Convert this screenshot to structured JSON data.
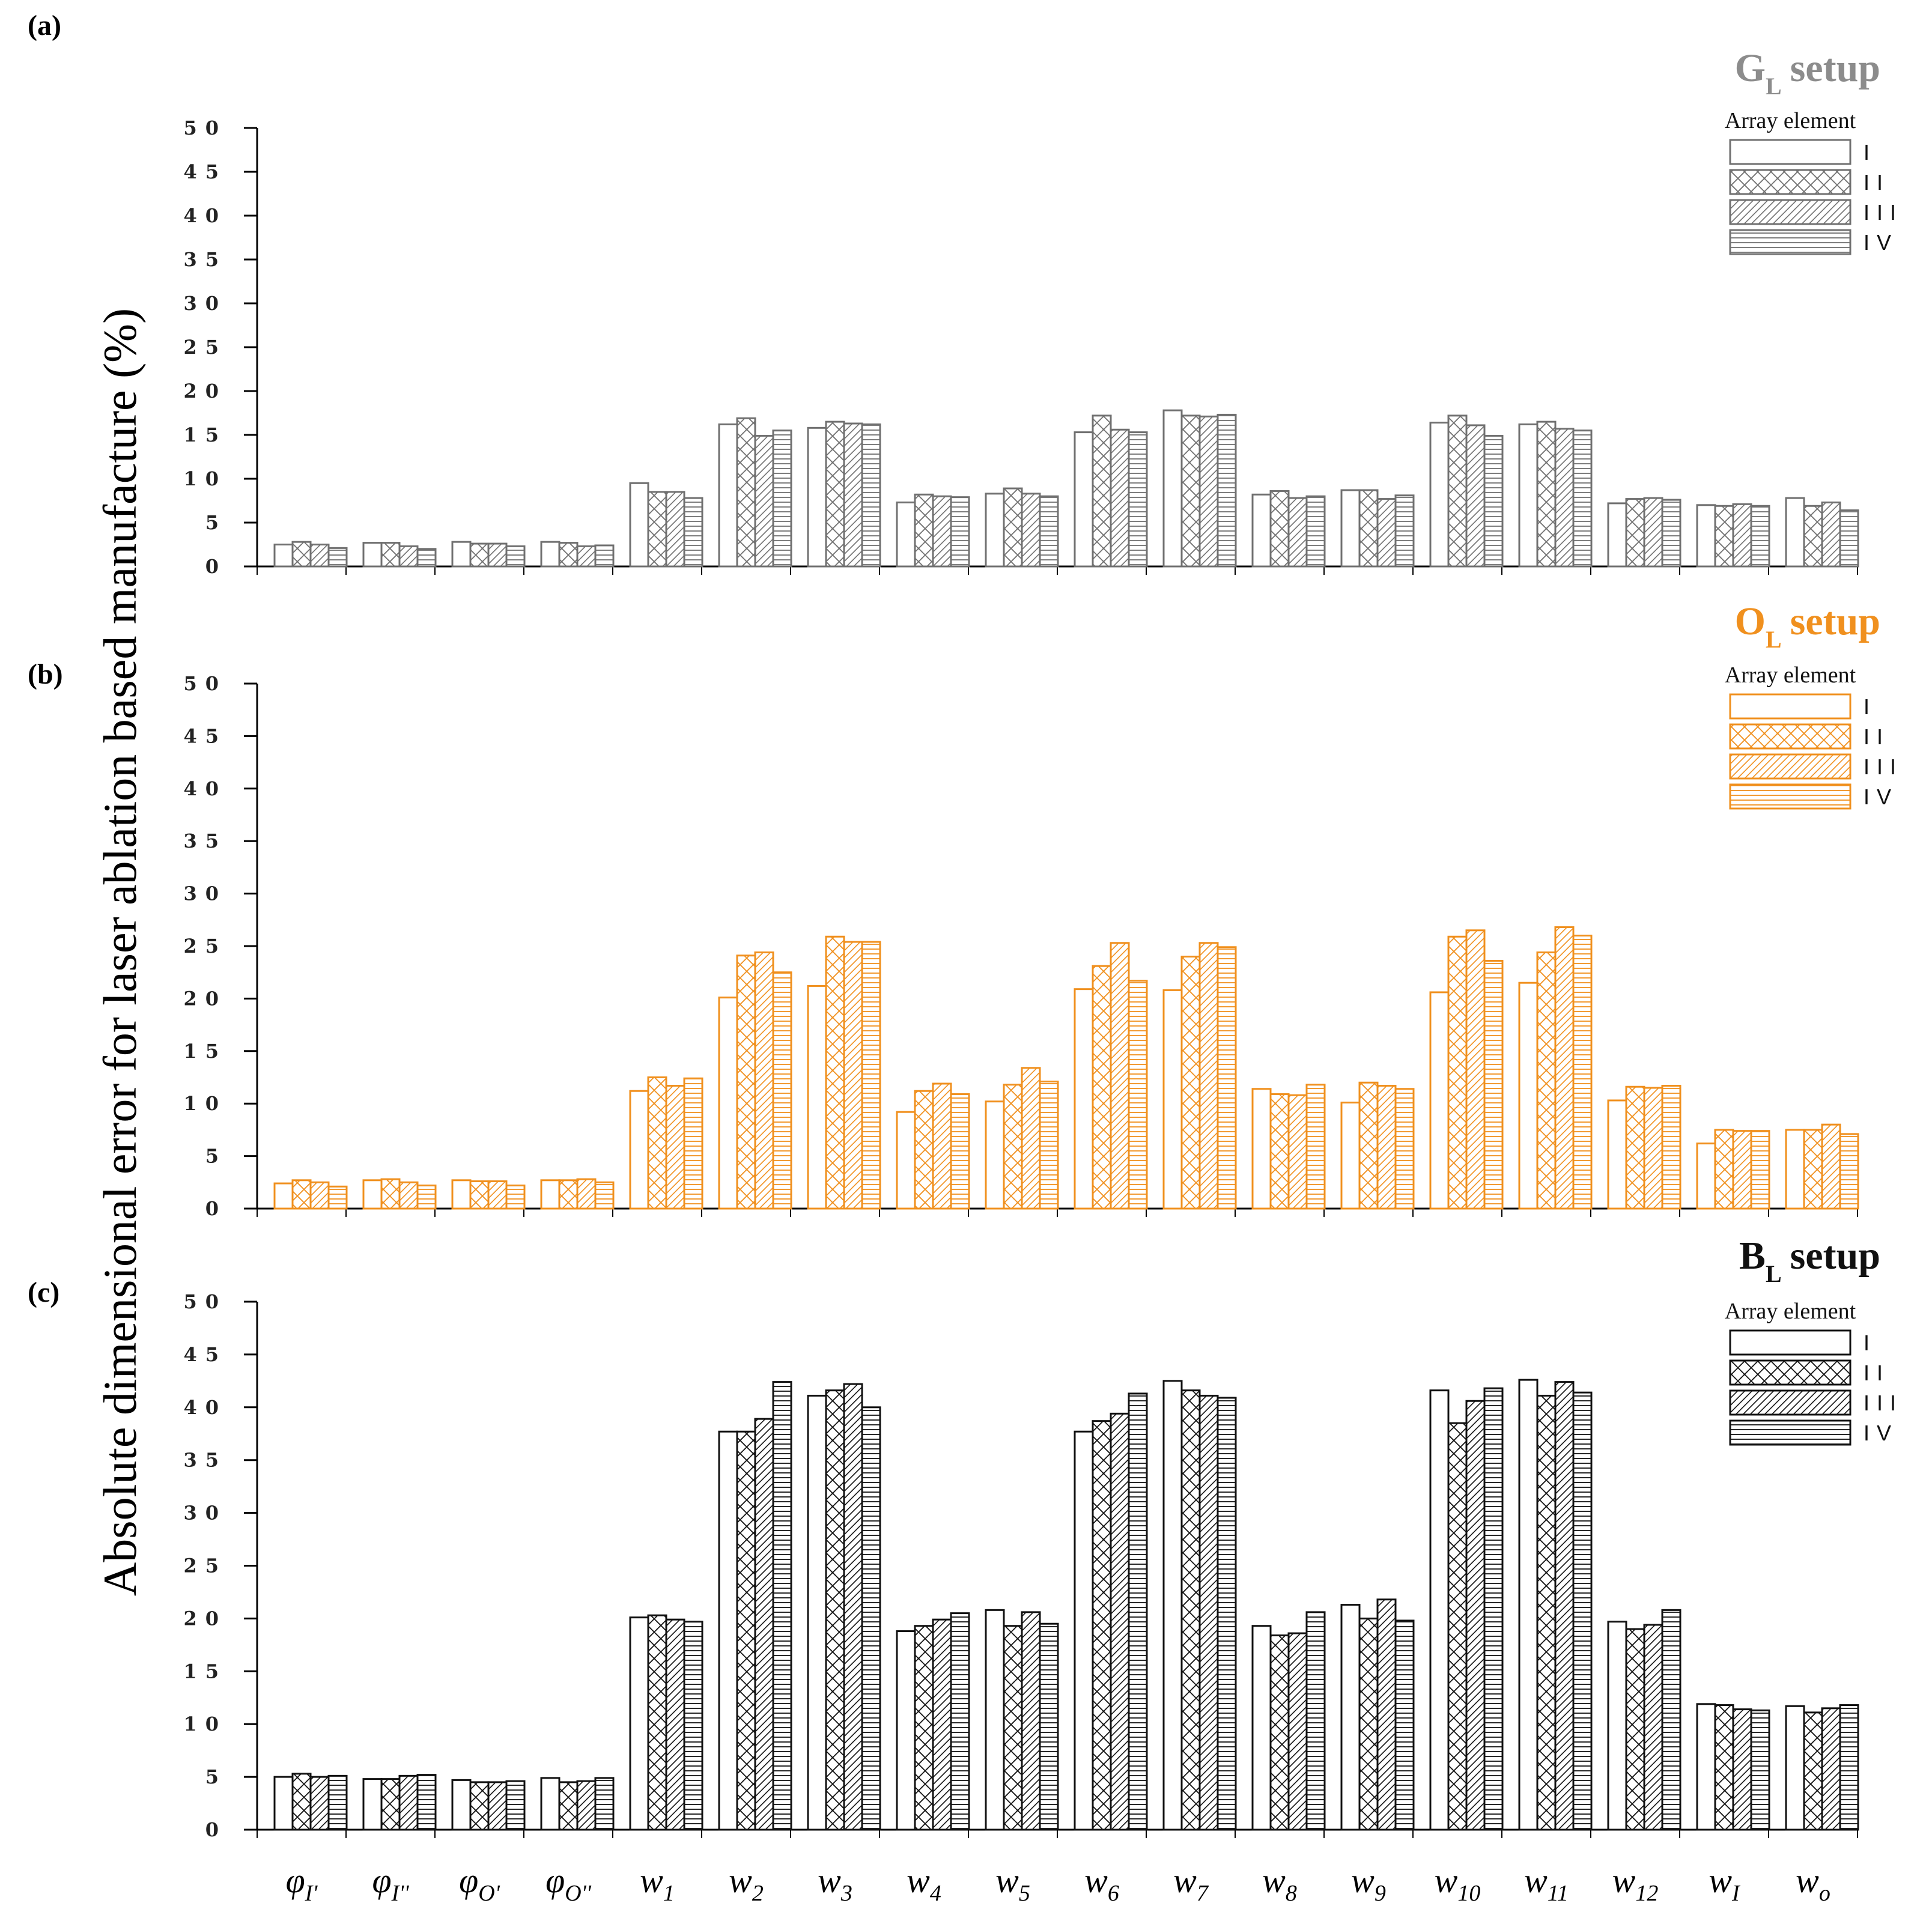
{
  "figure": {
    "ylabel": "Absolute dimensional error for laser ablation based manufacture (%)",
    "categories": [
      "φI'",
      "φI''",
      "φO'",
      "φO''",
      "w1",
      "w2",
      "w3",
      "w4",
      "w5",
      "w6",
      "w7",
      "w8",
      "w9",
      "w10",
      "w11",
      "w12",
      "wI",
      "wo"
    ],
    "category_labels": [
      {
        "base": "φ",
        "sub": "I'"
      },
      {
        "base": "φ",
        "sub": "I''"
      },
      {
        "base": "φ",
        "sub": "O'"
      },
      {
        "base": "φ",
        "sub": "O''"
      },
      {
        "base": "w",
        "sub": "1"
      },
      {
        "base": "w",
        "sub": "2"
      },
      {
        "base": "w",
        "sub": "3"
      },
      {
        "base": "w",
        "sub": "4"
      },
      {
        "base": "w",
        "sub": "5"
      },
      {
        "base": "w",
        "sub": "6"
      },
      {
        "base": "w",
        "sub": "7"
      },
      {
        "base": "w",
        "sub": "8"
      },
      {
        "base": "w",
        "sub": "9"
      },
      {
        "base": "w",
        "sub": "10"
      },
      {
        "base": "w",
        "sub": "11"
      },
      {
        "base": "w",
        "sub": "12"
      },
      {
        "base": "w",
        "sub": "I"
      },
      {
        "base": "w",
        "sub": "o"
      }
    ],
    "legend_title": "Array element",
    "legend_entries": [
      "I",
      "II",
      "III",
      "IV"
    ]
  },
  "chart_data": [
    {
      "type": "bar",
      "panel_label": "(a)",
      "title_main": "G",
      "title_sub": "L",
      "title_rest": "setup",
      "title_color": "#8c8c8c",
      "color": "#707070",
      "ylim": [
        0,
        50
      ],
      "yticks": [
        0,
        5,
        10,
        15,
        20,
        25,
        30,
        35,
        40,
        45,
        50
      ],
      "legend_position": "top-right",
      "series": [
        {
          "name": "I",
          "values": [
            2.5,
            2.7,
            2.8,
            2.8,
            9.5,
            16.2,
            15.8,
            7.3,
            8.3,
            15.3,
            17.8,
            8.2,
            8.7,
            16.4,
            16.2,
            7.2,
            7.0,
            7.8
          ]
        },
        {
          "name": "II",
          "values": [
            2.8,
            2.7,
            2.6,
            2.7,
            8.5,
            16.9,
            16.5,
            8.2,
            8.9,
            17.2,
            17.2,
            8.6,
            8.7,
            17.2,
            16.5,
            7.7,
            6.9,
            6.9
          ]
        },
        {
          "name": "III",
          "values": [
            2.5,
            2.3,
            2.6,
            2.3,
            8.5,
            14.9,
            16.3,
            8.0,
            8.3,
            15.6,
            17.1,
            7.8,
            7.7,
            16.1,
            15.7,
            7.8,
            7.1,
            7.3
          ]
        },
        {
          "name": "IV",
          "values": [
            2.1,
            2.0,
            2.3,
            2.4,
            7.8,
            15.5,
            16.2,
            7.9,
            8.0,
            15.3,
            17.3,
            8.0,
            8.1,
            14.9,
            15.5,
            7.6,
            6.9,
            6.4
          ]
        }
      ]
    },
    {
      "type": "bar",
      "panel_label": "(b)",
      "title_main": "O",
      "title_sub": "L",
      "title_rest": "setup",
      "title_color": "#f0901e",
      "color": "#f0901e",
      "ylim": [
        0,
        50
      ],
      "yticks": [
        0,
        5,
        10,
        15,
        20,
        25,
        30,
        35,
        40,
        45,
        50
      ],
      "legend_position": "top-right",
      "series": [
        {
          "name": "I",
          "values": [
            2.4,
            2.7,
            2.7,
            2.7,
            11.2,
            20.1,
            21.2,
            9.2,
            10.2,
            20.9,
            20.8,
            11.4,
            10.1,
            20.6,
            21.5,
            10.3,
            6.2,
            7.5
          ]
        },
        {
          "name": "II",
          "values": [
            2.7,
            2.8,
            2.6,
            2.7,
            12.5,
            24.1,
            25.9,
            11.2,
            11.8,
            23.1,
            24.0,
            10.9,
            12.0,
            25.9,
            24.4,
            11.6,
            7.5,
            7.5
          ]
        },
        {
          "name": "III",
          "values": [
            2.5,
            2.5,
            2.6,
            2.8,
            11.7,
            24.4,
            25.4,
            11.9,
            13.4,
            25.3,
            25.3,
            10.8,
            11.7,
            26.5,
            26.8,
            11.5,
            7.4,
            8.0
          ]
        },
        {
          "name": "IV",
          "values": [
            2.1,
            2.2,
            2.2,
            2.5,
            12.4,
            22.5,
            25.4,
            10.9,
            12.1,
            21.7,
            24.9,
            11.8,
            11.4,
            23.6,
            26.0,
            11.7,
            7.4,
            7.1
          ]
        }
      ]
    },
    {
      "type": "bar",
      "panel_label": "(c)",
      "title_main": "B",
      "title_sub": "L",
      "title_rest": "setup",
      "title_color": "#111111",
      "color": "#111111",
      "ylim": [
        0,
        50
      ],
      "yticks": [
        0,
        5,
        10,
        15,
        20,
        25,
        30,
        35,
        40,
        45,
        50
      ],
      "legend_position": "top-right",
      "series": [
        {
          "name": "I",
          "values": [
            5.0,
            4.8,
            4.7,
            4.9,
            20.1,
            37.7,
            41.1,
            18.8,
            20.8,
            37.7,
            42.5,
            19.3,
            21.3,
            41.6,
            42.6,
            19.7,
            11.9,
            11.7
          ]
        },
        {
          "name": "II",
          "values": [
            5.3,
            4.8,
            4.5,
            4.5,
            20.3,
            37.7,
            41.6,
            19.3,
            19.3,
            38.7,
            41.6,
            18.4,
            20.0,
            38.5,
            41.1,
            19.0,
            11.8,
            11.1
          ]
        },
        {
          "name": "III",
          "values": [
            5.0,
            5.1,
            4.5,
            4.6,
            19.9,
            38.9,
            42.2,
            19.9,
            20.6,
            39.4,
            41.1,
            18.6,
            21.8,
            40.6,
            42.4,
            19.4,
            11.4,
            11.5
          ]
        },
        {
          "name": "IV",
          "values": [
            5.1,
            5.2,
            4.6,
            4.9,
            19.7,
            42.4,
            40.0,
            20.5,
            19.5,
            41.3,
            40.9,
            20.6,
            19.8,
            41.8,
            41.4,
            20.8,
            11.3,
            11.8
          ]
        }
      ]
    }
  ]
}
